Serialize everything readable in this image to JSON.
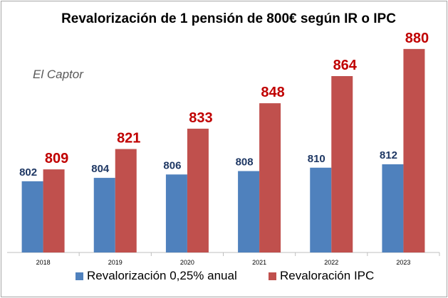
{
  "chart_data": {
    "type": "bar",
    "title": "Revalorización de 1 pensión de 800€ según IR o IPC",
    "watermark": "El Captor",
    "categories": [
      "2018",
      "2019",
      "2020",
      "2021",
      "2022",
      "2023"
    ],
    "series": [
      {
        "name": "Revalorización 0,25% anual",
        "values": [
          802,
          804,
          806,
          808,
          810,
          812
        ],
        "color": "#4f81bd",
        "label_color": "#1f3864"
      },
      {
        "name": "Revaloración IPC",
        "values": [
          809,
          821,
          833,
          848,
          864,
          880
        ],
        "color": "#c0504d",
        "label_color": "#c00000"
      }
    ],
    "xlabel": "",
    "ylabel": "",
    "ylim": [
      760,
      890
    ],
    "grid": false,
    "legend_position": "bottom"
  }
}
